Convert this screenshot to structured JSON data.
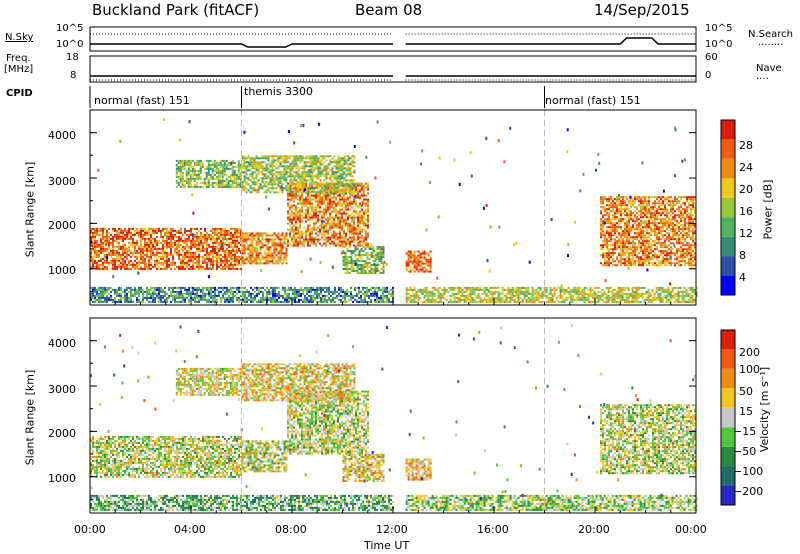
{
  "header": {
    "site": "Buckland Park (fitACF)",
    "beam": "Beam 08",
    "date": "14/Sep/2015"
  },
  "panels": {
    "nsky_label": "N.Sky",
    "nsearch_label": "N.Search",
    "nsearch_key": "........",
    "nsky_ticks": [
      "10^5",
      "10^0"
    ],
    "nsearch_ticks": [
      "10^5",
      "10^0"
    ],
    "freq_label_line1": "Freq.",
    "freq_label_line2": "[MHz]",
    "freq_ticks": [
      "18",
      "8"
    ],
    "nave_label": "Nave",
    "nave_key": "....",
    "nave_ticks": [
      "60",
      "0"
    ],
    "cpid_label": "CPID",
    "cpid_segments": [
      {
        "label": "normal (fast) 151",
        "start": 0,
        "end": 6
      },
      {
        "label": "themis 3300",
        "start": 6,
        "end": 18
      },
      {
        "label": "normal (fast) 151",
        "start": 18,
        "end": 24
      }
    ]
  },
  "chart_data": [
    {
      "type": "heatmap",
      "name": "power",
      "ylabel": "Slant Range [km]",
      "xlabel": "",
      "x_range_hours": [
        0,
        24
      ],
      "ylim": [
        200,
        4500
      ],
      "yticks": [
        1000,
        2000,
        3000,
        4000
      ],
      "colorbar": {
        "label": "Power [dB]",
        "ticks": [
          "28",
          "24",
          "20",
          "16",
          "12",
          "8",
          "4"
        ],
        "colors": [
          "#0000ff",
          "#2850a8",
          "#3c8c78",
          "#50b45a",
          "#96c83c",
          "#f0c81e",
          "#f08c14",
          "#f05a14",
          "#dc1e0a"
        ]
      },
      "regions": [
        {
          "t0": 0.0,
          "t1": 6.0,
          "r0": 1000,
          "r1": 1900,
          "level": 0.8
        },
        {
          "t0": 6.0,
          "t1": 7.8,
          "r0": 1100,
          "r1": 1800,
          "level": 0.75
        },
        {
          "t0": 7.8,
          "t1": 11.0,
          "r0": 1500,
          "r1": 2900,
          "level": 0.75
        },
        {
          "t0": 3.4,
          "t1": 6.0,
          "r0": 2800,
          "r1": 3400,
          "level": 0.45
        },
        {
          "t0": 6.0,
          "t1": 10.5,
          "r0": 2700,
          "r1": 3500,
          "level": 0.5
        },
        {
          "t0": 10.0,
          "t1": 11.6,
          "r0": 900,
          "r1": 1500,
          "level": 0.45
        },
        {
          "t0": 12.5,
          "t1": 13.5,
          "r0": 950,
          "r1": 1400,
          "level": 0.8
        },
        {
          "t0": 20.2,
          "t1": 24.0,
          "r0": 1100,
          "r1": 2600,
          "level": 0.75
        },
        {
          "t0": 0.0,
          "t1": 12.0,
          "r0": 250,
          "r1": 600,
          "level": 0.3
        },
        {
          "t0": 12.5,
          "t1": 24.0,
          "r0": 250,
          "r1": 600,
          "level": 0.55
        }
      ]
    },
    {
      "type": "heatmap",
      "name": "velocity",
      "ylabel": "Slant Range [km]",
      "xlabel": "Time UT",
      "x_range_hours": [
        0,
        24
      ],
      "xticks": [
        "00:00",
        "04:00",
        "08:00",
        "12:00",
        "16:00",
        "20:00",
        "00:00"
      ],
      "ylim": [
        200,
        4500
      ],
      "yticks": [
        1000,
        2000,
        3000,
        4000
      ],
      "colorbar": {
        "label": "Velocity [m s⁻¹]",
        "ticks": [
          "200",
          "100",
          "50",
          "15",
          "−15",
          "−50",
          "−100",
          "−200"
        ],
        "colors": [
          "#2828c8",
          "#1e6e6e",
          "#288c3c",
          "#50c83c",
          "#c8c8c8",
          "#f0c81e",
          "#f08c14",
          "#f05a14",
          "#dc1e0a"
        ]
      },
      "regions": [
        {
          "t0": 0.0,
          "t1": 6.0,
          "r0": 1000,
          "r1": 1900,
          "level": 0.5
        },
        {
          "t0": 6.0,
          "t1": 7.8,
          "r0": 1100,
          "r1": 1800,
          "level": 0.5
        },
        {
          "t0": 7.8,
          "t1": 11.0,
          "r0": 1500,
          "r1": 2900,
          "level": 0.5
        },
        {
          "t0": 3.4,
          "t1": 6.0,
          "r0": 2800,
          "r1": 3400,
          "level": 0.55
        },
        {
          "t0": 6.0,
          "t1": 10.5,
          "r0": 2700,
          "r1": 3500,
          "level": 0.6
        },
        {
          "t0": 10.0,
          "t1": 11.6,
          "r0": 900,
          "r1": 1500,
          "level": 0.6
        },
        {
          "t0": 12.5,
          "t1": 13.5,
          "r0": 950,
          "r1": 1400,
          "level": 0.65
        },
        {
          "t0": 20.2,
          "t1": 24.0,
          "r0": 1100,
          "r1": 2600,
          "level": 0.5
        },
        {
          "t0": 0.0,
          "t1": 12.0,
          "r0": 250,
          "r1": 600,
          "level": 0.35
        },
        {
          "t0": 12.5,
          "t1": 24.0,
          "r0": 250,
          "r1": 600,
          "level": 0.45
        }
      ]
    }
  ]
}
